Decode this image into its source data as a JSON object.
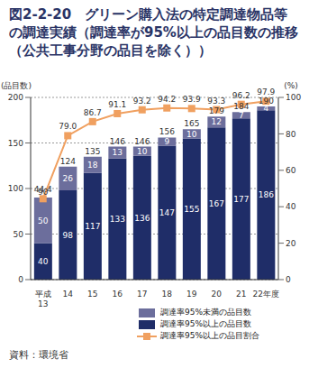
{
  "chart_data": {
    "type": "bar",
    "title": "図2-2-20　グリーン購入法の特定調達物品等の調達実績（調達率が95%以上の品目数の推移（公共工事分野の品目を除く））",
    "source": "資料：環境省",
    "y_label": "(品目数)",
    "y2_label": "(%)",
    "categories": [
      "平成13",
      "14",
      "15",
      "16",
      "17",
      "18",
      "19",
      "20",
      "21",
      "22年度"
    ],
    "stacked": true,
    "data_labels": true,
    "grid": true,
    "legend": "bottom",
    "ylim": [
      0,
      200
    ],
    "yticks": [
      0,
      50,
      100,
      150,
      200
    ],
    "y2lim": [
      0,
      100
    ],
    "y2ticks": [
      0,
      20,
      40,
      60,
      80,
      100
    ],
    "totals": [
      90,
      124,
      135,
      146,
      146,
      156,
      165,
      179,
      184,
      190
    ],
    "series": [
      {
        "name": "調達率95%以上の品目数",
        "type": "bar",
        "color": "#1f2d68",
        "values": [
          40,
          98,
          117,
          133,
          136,
          147,
          155,
          167,
          177,
          186
        ]
      },
      {
        "name": "調達率95%未満の品目数",
        "type": "bar",
        "color": "#6c6e9c",
        "values": [
          50,
          26,
          18,
          13,
          10,
          9,
          10,
          12,
          7,
          4
        ]
      },
      {
        "name": "調達率95%以上の品目割合",
        "type": "line",
        "axis": "y2",
        "color": "#f0a060",
        "marker": "square",
        "values": [
          44.4,
          79.0,
          86.7,
          91.1,
          93.2,
          94.2,
          93.9,
          93.3,
          96.2,
          97.9
        ],
        "value_labels": [
          "44.4",
          "79.0",
          "86.7",
          "91.1",
          "93.2",
          "94.2",
          "93.9",
          "93.3",
          "96.2",
          "97.9"
        ]
      }
    ]
  }
}
